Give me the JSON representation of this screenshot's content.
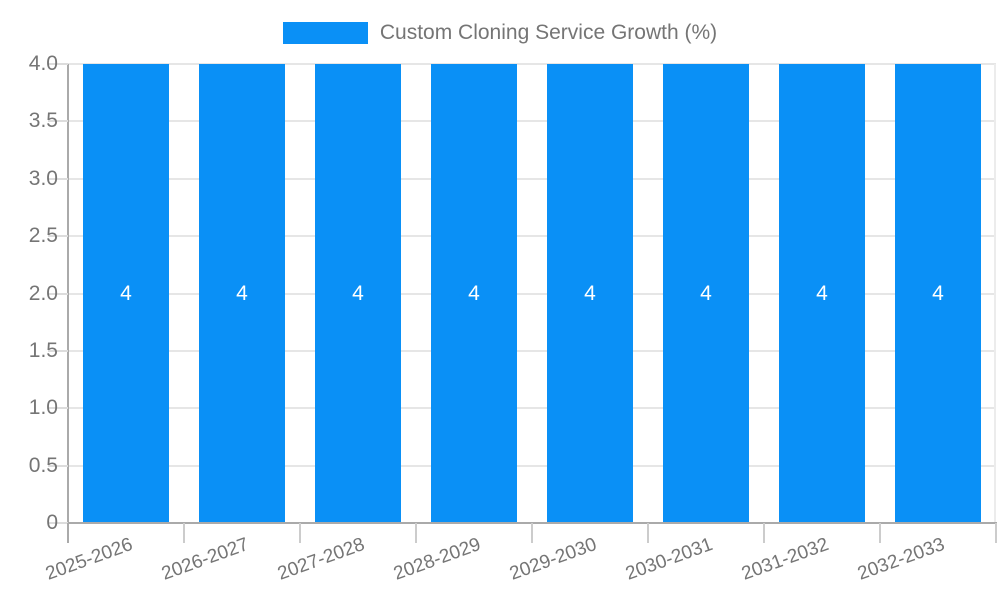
{
  "chart_data": {
    "type": "bar",
    "title": "Custom Cloning Service Growth (%)",
    "legend": {
      "position": "top",
      "label": "Custom Cloning Service Growth (%)"
    },
    "categories": [
      "2025-2026",
      "2026-2027",
      "2027-2028",
      "2028-2029",
      "2029-2030",
      "2030-2031",
      "2031-2032",
      "2032-2033"
    ],
    "series": [
      {
        "name": "Custom Cloning Service Growth (%)",
        "values": [
          4,
          4,
          4,
          4,
          4,
          4,
          4,
          4
        ],
        "bar_labels": [
          "4",
          "4",
          "4",
          "4",
          "4",
          "4",
          "4",
          "4"
        ]
      }
    ],
    "xlabel": "",
    "ylabel": "",
    "ylim": [
      0,
      4
    ],
    "yticks": [
      {
        "value": 0,
        "label": "0"
      },
      {
        "value": 0.5,
        "label": "0.5"
      },
      {
        "value": 1,
        "label": "1.0"
      },
      {
        "value": 1.5,
        "label": "1.5"
      },
      {
        "value": 2,
        "label": "2.0"
      },
      {
        "value": 2.5,
        "label": "2.5"
      },
      {
        "value": 3,
        "label": "3.0"
      },
      {
        "value": 3.5,
        "label": "3.5"
      },
      {
        "value": 4,
        "label": "4.0"
      }
    ],
    "grid": true,
    "x_label_rotation_deg": -20,
    "colors": {
      "bar": "#0a90f6",
      "gridline": "#e6e6e6",
      "right_gridline": "#ececec",
      "axis_line": "#aaaaaa",
      "y_tick": "#dcdcdc",
      "x_tick": "#cccccc",
      "x_tick_first": "#aaaaaa",
      "text": "#757575",
      "bar_label": "#ffffff",
      "background": "#ffffff"
    }
  }
}
